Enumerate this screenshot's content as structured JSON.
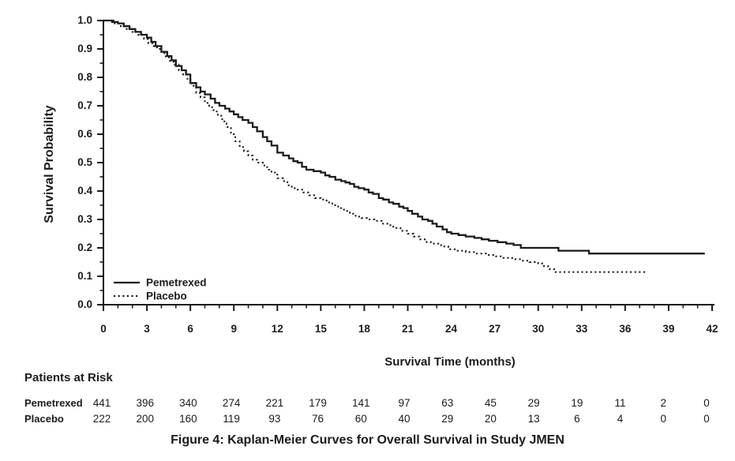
{
  "figure": {
    "caption": "Figure 4: Kaplan-Meier Curves for Overall Survival in Study JMEN"
  },
  "colors": {
    "line": "#1b1b1b",
    "text": "#1b1b1b",
    "background": "#ffffff"
  },
  "chart_data": {
    "type": "line",
    "subtype": "kaplan-meier-step",
    "title": "",
    "xlabel": "Survival Time (months)",
    "ylabel": "Survival Probability",
    "xlim": [
      0,
      42
    ],
    "ylim": [
      0.0,
      1.0
    ],
    "xticks": [
      0,
      3,
      6,
      9,
      12,
      15,
      18,
      21,
      24,
      27,
      30,
      33,
      36,
      39,
      42
    ],
    "x_minor_step": 1,
    "ytick_labels": [
      "1.0",
      "0.9",
      "0.8",
      "0.7",
      "0.6",
      "0.5",
      "0.4",
      "0.3",
      "0.2",
      "0.1",
      "0.0"
    ],
    "y_minor_step": 0.05,
    "grid": false,
    "legend_position": "lower-left-inside",
    "legend": [
      {
        "name": "Pemetrexed",
        "style": "solid"
      },
      {
        "name": "Placebo",
        "style": "dotted"
      }
    ],
    "series": [
      {
        "name": "Pemetrexed",
        "style": "solid",
        "points": [
          [
            0,
            1.0
          ],
          [
            0.6,
            0.995
          ],
          [
            1.0,
            0.99
          ],
          [
            1.4,
            0.98
          ],
          [
            1.8,
            0.97
          ],
          [
            2.2,
            0.96
          ],
          [
            2.6,
            0.95
          ],
          [
            3.0,
            0.94
          ],
          [
            3.3,
            0.925
          ],
          [
            3.6,
            0.91
          ],
          [
            4.0,
            0.89
          ],
          [
            4.4,
            0.875
          ],
          [
            4.7,
            0.86
          ],
          [
            5.0,
            0.84
          ],
          [
            5.4,
            0.825
          ],
          [
            5.7,
            0.81
          ],
          [
            6.0,
            0.78
          ],
          [
            6.4,
            0.765
          ],
          [
            6.7,
            0.75
          ],
          [
            7.0,
            0.74
          ],
          [
            7.4,
            0.725
          ],
          [
            7.7,
            0.71
          ],
          [
            8.0,
            0.7
          ],
          [
            8.4,
            0.69
          ],
          [
            8.7,
            0.68
          ],
          [
            9.0,
            0.67
          ],
          [
            9.3,
            0.66
          ],
          [
            9.6,
            0.65
          ],
          [
            10.0,
            0.64
          ],
          [
            10.3,
            0.625
          ],
          [
            10.6,
            0.61
          ],
          [
            11.0,
            0.59
          ],
          [
            11.3,
            0.575
          ],
          [
            11.6,
            0.56
          ],
          [
            12.0,
            0.535
          ],
          [
            12.4,
            0.525
          ],
          [
            12.8,
            0.515
          ],
          [
            13.1,
            0.505
          ],
          [
            13.4,
            0.5
          ],
          [
            13.7,
            0.485
          ],
          [
            14.0,
            0.475
          ],
          [
            14.5,
            0.47
          ],
          [
            15.0,
            0.465
          ],
          [
            15.3,
            0.455
          ],
          [
            15.6,
            0.45
          ],
          [
            16.0,
            0.44
          ],
          [
            16.4,
            0.435
          ],
          [
            16.7,
            0.43
          ],
          [
            17.0,
            0.425
          ],
          [
            17.3,
            0.415
          ],
          [
            17.6,
            0.41
          ],
          [
            18.0,
            0.405
          ],
          [
            18.3,
            0.395
          ],
          [
            18.6,
            0.39
          ],
          [
            19.0,
            0.375
          ],
          [
            19.3,
            0.37
          ],
          [
            19.7,
            0.36
          ],
          [
            20.0,
            0.355
          ],
          [
            20.4,
            0.345
          ],
          [
            20.7,
            0.34
          ],
          [
            21.0,
            0.33
          ],
          [
            21.3,
            0.32
          ],
          [
            21.7,
            0.31
          ],
          [
            22.0,
            0.3
          ],
          [
            22.4,
            0.295
          ],
          [
            22.7,
            0.285
          ],
          [
            23.0,
            0.275
          ],
          [
            23.4,
            0.265
          ],
          [
            23.7,
            0.255
          ],
          [
            24.0,
            0.25
          ],
          [
            24.5,
            0.245
          ],
          [
            25.0,
            0.24
          ],
          [
            25.6,
            0.235
          ],
          [
            26.1,
            0.23
          ],
          [
            26.6,
            0.225
          ],
          [
            27.2,
            0.22
          ],
          [
            27.8,
            0.215
          ],
          [
            28.3,
            0.21
          ],
          [
            28.8,
            0.2
          ],
          [
            31.4,
            0.19
          ],
          [
            33.5,
            0.18
          ],
          [
            41.5,
            0.18
          ]
        ]
      },
      {
        "name": "Placebo",
        "style": "dotted",
        "points": [
          [
            0,
            1.0
          ],
          [
            0.7,
            0.99
          ],
          [
            1.2,
            0.98
          ],
          [
            1.6,
            0.97
          ],
          [
            2.0,
            0.96
          ],
          [
            2.4,
            0.95
          ],
          [
            2.8,
            0.935
          ],
          [
            3.1,
            0.92
          ],
          [
            3.4,
            0.91
          ],
          [
            3.7,
            0.9
          ],
          [
            4.0,
            0.885
          ],
          [
            4.3,
            0.87
          ],
          [
            4.6,
            0.855
          ],
          [
            4.9,
            0.845
          ],
          [
            5.2,
            0.825
          ],
          [
            5.5,
            0.81
          ],
          [
            5.8,
            0.79
          ],
          [
            6.1,
            0.77
          ],
          [
            6.4,
            0.745
          ],
          [
            6.7,
            0.73
          ],
          [
            7.0,
            0.71
          ],
          [
            7.3,
            0.695
          ],
          [
            7.6,
            0.68
          ],
          [
            7.9,
            0.665
          ],
          [
            8.2,
            0.645
          ],
          [
            8.5,
            0.625
          ],
          [
            8.8,
            0.6
          ],
          [
            9.1,
            0.575
          ],
          [
            9.4,
            0.555
          ],
          [
            9.7,
            0.54
          ],
          [
            10.0,
            0.525
          ],
          [
            10.3,
            0.51
          ],
          [
            10.6,
            0.5
          ],
          [
            11.0,
            0.49
          ],
          [
            11.3,
            0.475
          ],
          [
            11.6,
            0.465
          ],
          [
            12.0,
            0.445
          ],
          [
            12.4,
            0.435
          ],
          [
            12.7,
            0.42
          ],
          [
            13.0,
            0.41
          ],
          [
            13.4,
            0.405
          ],
          [
            13.8,
            0.395
          ],
          [
            14.2,
            0.385
          ],
          [
            14.6,
            0.375
          ],
          [
            15.0,
            0.37
          ],
          [
            15.4,
            0.36
          ],
          [
            15.8,
            0.35
          ],
          [
            16.2,
            0.34
          ],
          [
            16.6,
            0.33
          ],
          [
            17.0,
            0.32
          ],
          [
            17.4,
            0.31
          ],
          [
            17.8,
            0.305
          ],
          [
            18.2,
            0.3
          ],
          [
            18.7,
            0.295
          ],
          [
            19.2,
            0.285
          ],
          [
            19.6,
            0.28
          ],
          [
            20.0,
            0.27
          ],
          [
            20.5,
            0.26
          ],
          [
            21.0,
            0.25
          ],
          [
            21.4,
            0.24
          ],
          [
            21.8,
            0.23
          ],
          [
            22.3,
            0.22
          ],
          [
            22.8,
            0.215
          ],
          [
            23.3,
            0.205
          ],
          [
            23.8,
            0.195
          ],
          [
            24.3,
            0.19
          ],
          [
            25.0,
            0.185
          ],
          [
            25.7,
            0.18
          ],
          [
            26.4,
            0.175
          ],
          [
            27.0,
            0.17
          ],
          [
            27.6,
            0.165
          ],
          [
            28.2,
            0.16
          ],
          [
            28.8,
            0.155
          ],
          [
            29.4,
            0.15
          ],
          [
            30.0,
            0.145
          ],
          [
            30.4,
            0.135
          ],
          [
            30.8,
            0.125
          ],
          [
            31.2,
            0.115
          ],
          [
            37.5,
            0.115
          ]
        ]
      }
    ]
  },
  "at_risk": {
    "title": "Patients at Risk",
    "rows": [
      {
        "label": "Pemetrexed",
        "counts": [
          441,
          396,
          340,
          274,
          221,
          179,
          141,
          97,
          63,
          45,
          29,
          19,
          11,
          2,
          0
        ]
      },
      {
        "label": "Placebo",
        "counts": [
          222,
          200,
          160,
          119,
          93,
          76,
          60,
          40,
          29,
          20,
          13,
          6,
          4,
          0,
          0
        ]
      }
    ]
  }
}
